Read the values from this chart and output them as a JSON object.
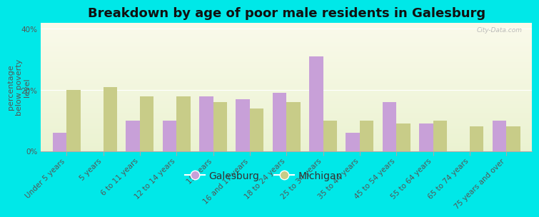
{
  "title": "Breakdown by age of poor male residents in Galesburg",
  "categories": [
    "Under 5 years",
    "5 years",
    "6 to 11 years",
    "12 to 14 years",
    "15 years",
    "16 and 17 years",
    "18 to 24 years",
    "25 to 34 years",
    "35 to 44 years",
    "45 to 54 years",
    "55 to 64 years",
    "65 to 74 years",
    "75 years and over"
  ],
  "galesburg": [
    6,
    0,
    10,
    10,
    18,
    17,
    19,
    31,
    6,
    16,
    9,
    0,
    10
  ],
  "michigan": [
    20,
    21,
    18,
    18,
    16,
    14,
    16,
    10,
    10,
    9,
    10,
    8,
    8
  ],
  "galesburg_color": "#c8a0d8",
  "michigan_color": "#c8cc88",
  "background_color": "#00e8e8",
  "ylabel": "percentage\nbelow poverty\nlevel",
  "ylim": [
    0,
    42
  ],
  "yticks": [
    0,
    20,
    40
  ],
  "ytick_labels": [
    "0%",
    "20%",
    "40%"
  ],
  "bar_width": 0.38,
  "title_fontsize": 13,
  "tick_fontsize": 7.5,
  "ylabel_fontsize": 8,
  "legend_fontsize": 10,
  "watermark": "City-Data.com"
}
